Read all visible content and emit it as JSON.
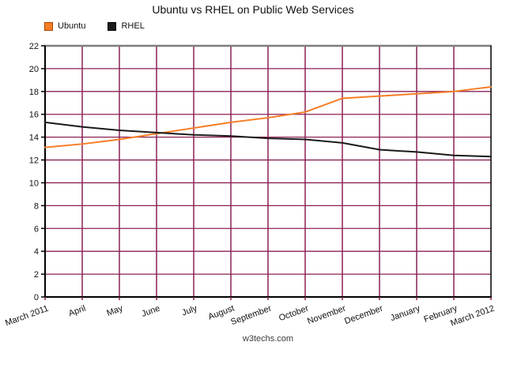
{
  "chart_data": {
    "type": "line",
    "title": "Ubuntu vs RHEL on Public Web Services",
    "categories": [
      "March 2011",
      "April",
      "May",
      "June",
      "July",
      "August",
      "September",
      "October",
      "November",
      "December",
      "January",
      "February",
      "March 2012"
    ],
    "series": [
      {
        "name": "Ubuntu",
        "color": "#f57e27",
        "swatch_border": "#a84300",
        "values": [
          13.1,
          13.4,
          13.8,
          14.3,
          14.8,
          15.3,
          15.7,
          16.2,
          17.4,
          17.6,
          17.8,
          18.0,
          18.4
        ]
      },
      {
        "name": "RHEL",
        "color": "#1a1a1a",
        "swatch_border": "#000000",
        "values": [
          15.3,
          14.9,
          14.6,
          14.4,
          14.2,
          14.1,
          13.9,
          13.8,
          13.5,
          12.9,
          12.7,
          12.4,
          12.3
        ]
      }
    ],
    "xlabel": "",
    "ylabel": "",
    "ylim": [
      0,
      22
    ],
    "ytick_step": 2,
    "grid": true,
    "grid_color": "#8b2154",
    "axis_color": "#000000",
    "top_border_color": "#7d7d7d",
    "legend_position": "top-left",
    "watermark": "w3techs.com"
  }
}
